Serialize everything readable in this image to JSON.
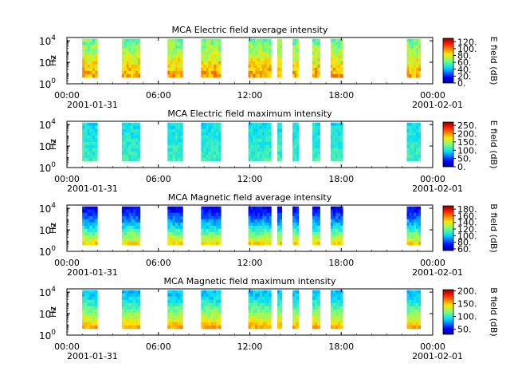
{
  "chart_data": [
    {
      "type": "heatmap",
      "title": "MCA  Electric field average intensity",
      "ylabel": "Hz",
      "colorbar_label": "E field (dB)",
      "yticks": [
        {
          "label": "10",
          "exp": "0"
        },
        {
          "label": "10",
          "exp": "2"
        },
        {
          "label": "10",
          "exp": "4"
        }
      ],
      "ylim": [
        1,
        20000
      ],
      "yscale": "log",
      "xticks": [
        "00:00",
        "06:00",
        "12:00",
        "18:00",
        "00:00"
      ],
      "xdates": [
        "2001-01-31",
        "2001-02-01"
      ],
      "colorbar_ticks": [
        "0.",
        "20.",
        "40.",
        "60.",
        "80.",
        "100.",
        "120."
      ],
      "clim": [
        0,
        130
      ],
      "intervals_hours": [
        [
          1.0,
          2.0
        ],
        [
          3.6,
          4.8
        ],
        [
          6.6,
          7.6
        ],
        [
          8.8,
          10.1
        ],
        [
          11.9,
          13.4
        ],
        [
          13.8,
          14.1
        ],
        [
          14.8,
          15.2
        ],
        [
          16.1,
          16.6
        ],
        [
          17.3,
          18.1
        ],
        [
          22.3,
          23.2
        ]
      ]
    },
    {
      "type": "heatmap",
      "title": "MCA  Electric field maximum intensity",
      "ylabel": "Hz",
      "colorbar_label": "E field (dB)",
      "yticks": [
        {
          "label": "10",
          "exp": "0"
        },
        {
          "label": "10",
          "exp": "2"
        },
        {
          "label": "10",
          "exp": "4"
        }
      ],
      "ylim": [
        1,
        20000
      ],
      "yscale": "log",
      "xticks": [
        "00:00",
        "06:00",
        "12:00",
        "18:00",
        "00:00"
      ],
      "xdates": [
        "2001-01-31",
        "2001-02-01"
      ],
      "colorbar_ticks": [
        "0.",
        "50.",
        "100.",
        "150.",
        "200.",
        "250."
      ],
      "clim": [
        0,
        270
      ],
      "intervals_hours": [
        [
          1.0,
          2.0
        ],
        [
          3.6,
          4.8
        ],
        [
          6.6,
          7.6
        ],
        [
          8.8,
          10.1
        ],
        [
          11.9,
          13.4
        ],
        [
          13.8,
          14.1
        ],
        [
          14.8,
          15.2
        ],
        [
          16.1,
          16.6
        ],
        [
          17.3,
          18.1
        ],
        [
          22.3,
          23.2
        ]
      ]
    },
    {
      "type": "heatmap",
      "title": "MCA  Magnetic field average intensity",
      "ylabel": "Hz",
      "colorbar_label": "B field (dB)",
      "yticks": [
        {
          "label": "10",
          "exp": "0"
        },
        {
          "label": "10",
          "exp": "2"
        },
        {
          "label": "10",
          "exp": "4"
        }
      ],
      "ylim": [
        1,
        20000
      ],
      "yscale": "log",
      "xticks": [
        "00:00",
        "06:00",
        "12:00",
        "18:00",
        "00:00"
      ],
      "xdates": [
        "2001-01-31",
        "2001-02-01"
      ],
      "colorbar_ticks": [
        "60.",
        "80.",
        "100.",
        "120.",
        "140.",
        "160.",
        "180."
      ],
      "clim": [
        55,
        190
      ],
      "intervals_hours": [
        [
          1.0,
          2.0
        ],
        [
          3.6,
          4.8
        ],
        [
          6.6,
          7.6
        ],
        [
          8.8,
          10.1
        ],
        [
          11.9,
          13.4
        ],
        [
          13.8,
          14.1
        ],
        [
          14.8,
          15.2
        ],
        [
          16.1,
          16.6
        ],
        [
          17.3,
          18.1
        ],
        [
          22.3,
          23.2
        ]
      ]
    },
    {
      "type": "heatmap",
      "title": "MCA  Magnetic field maximum intensity",
      "ylabel": "Hz",
      "colorbar_label": "B field (dB)",
      "yticks": [
        {
          "label": "10",
          "exp": "0"
        },
        {
          "label": "10",
          "exp": "2"
        },
        {
          "label": "10",
          "exp": "4"
        }
      ],
      "ylim": [
        1,
        20000
      ],
      "yscale": "log",
      "xticks": [
        "00:00",
        "06:00",
        "12:00",
        "18:00",
        "00:00"
      ],
      "xdates": [
        "2001-01-31",
        "2001-02-01"
      ],
      "colorbar_ticks": [
        "50.",
        "100.",
        "150.",
        "200."
      ],
      "clim": [
        30,
        205
      ],
      "intervals_hours": [
        [
          1.0,
          2.0
        ],
        [
          3.6,
          4.8
        ],
        [
          6.6,
          7.6
        ],
        [
          8.8,
          10.1
        ],
        [
          11.9,
          13.4
        ],
        [
          13.8,
          14.1
        ],
        [
          14.8,
          15.2
        ],
        [
          16.1,
          16.6
        ],
        [
          17.3,
          18.1
        ],
        [
          22.3,
          23.2
        ]
      ]
    }
  ]
}
